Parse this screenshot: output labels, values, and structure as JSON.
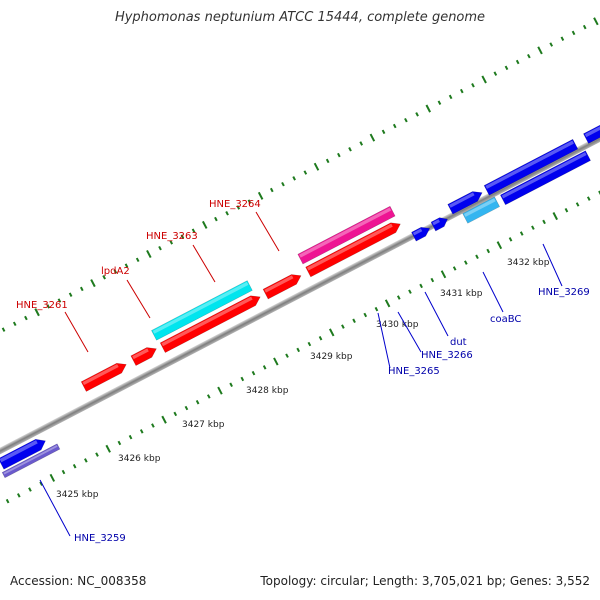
{
  "title": "Hyphomonas neptunium ATCC 15444, complete genome",
  "footer": {
    "accession": "Accession: NC_008358",
    "stats": "Topology: circular; Length: 3,705,021 bp; Genes: 3,552"
  },
  "colors": {
    "backbone": "#8a8a8a",
    "ticks": "#1e7a1e",
    "red": "#ff0000",
    "cyan": "#00e5ee",
    "magenta": "#ee1493",
    "blue": "#0000ee",
    "lightblue": "#33b5f0",
    "slate": "#6a5acd",
    "label_red": "#cc0000",
    "label_blue": "#0000aa"
  },
  "axis": {
    "unit": "kbp"
  },
  "scale": {
    "labels": [
      {
        "text": "3425 kbp"
      },
      {
        "text": "3426 kbp"
      },
      {
        "text": "3427 kbp"
      },
      {
        "text": "3428 kbp"
      },
      {
        "text": "3429 kbp"
      },
      {
        "text": "3430 kbp"
      },
      {
        "text": "3431 kbp"
      },
      {
        "text": "3432 kbp"
      }
    ]
  },
  "genes": [
    {
      "name": "HNE_3259",
      "color": "blue"
    },
    {
      "name": "HNE_3261",
      "color": "red"
    },
    {
      "name": "lpdA2",
      "color": "red"
    },
    {
      "name": "HNE_3263",
      "color": "red"
    },
    {
      "name": "HNE_3264",
      "color": "red"
    },
    {
      "name": "HNE_3265",
      "color": "blue"
    },
    {
      "name": "HNE_3266",
      "color": "blue"
    },
    {
      "name": "dut",
      "color": "blue"
    },
    {
      "name": "coaBC",
      "color": "blue"
    },
    {
      "name": "HNE_3269",
      "color": "blue"
    }
  ]
}
